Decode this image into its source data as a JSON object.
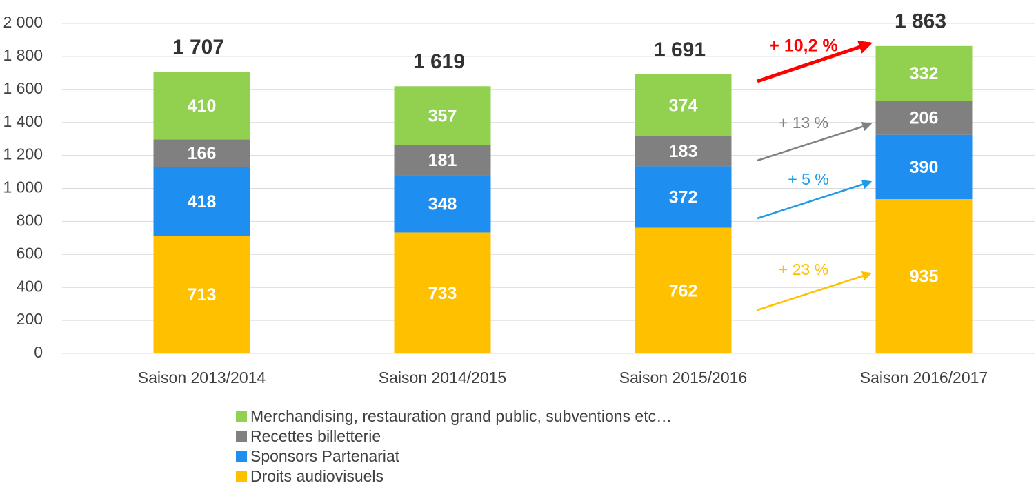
{
  "chart_data": {
    "type": "stacked_bar",
    "categories": [
      "Saison 2013/2014",
      "Saison 2014/2015",
      "Saison 2015/2016",
      "Saison 2016/2017"
    ],
    "series": [
      {
        "name": "Droits audiovisuels",
        "color": "#FFC000",
        "values": [
          713,
          733,
          762,
          935
        ]
      },
      {
        "name": "Sponsors Partenariat",
        "color": "#1E8FF0",
        "values": [
          418,
          348,
          372,
          390
        ]
      },
      {
        "name": "Recettes billetterie",
        "color": "#808080",
        "values": [
          166,
          181,
          183,
          206
        ]
      },
      {
        "name": "Merchandising, restauration grand public, subventions etc…",
        "color": "#92D050",
        "values": [
          410,
          357,
          374,
          332
        ]
      }
    ],
    "totals": {
      "values": [
        1707,
        1619,
        1691,
        1863
      ],
      "value_labels": [
        "1 707",
        "1 619",
        "1 691",
        "1 863"
      ]
    },
    "annotations": [
      {
        "text": "+ 10,2 %",
        "color": "#FF0000"
      },
      {
        "text": "+ 13 %",
        "color": "#808080"
      },
      {
        "text": "+ 5 %",
        "color": "#1E9BE8"
      },
      {
        "text": "+ 23 %",
        "color": "#FFC000"
      }
    ],
    "ylim": [
      0,
      2000
    ],
    "yticks": [
      0,
      200,
      400,
      600,
      800,
      {
        "value": 1000,
        "label": "1 000"
      },
      {
        "value": 1200,
        "label": "1 200"
      },
      {
        "value": 1400,
        "label": "1 400"
      },
      {
        "value": 1600,
        "label": "1 600"
      },
      {
        "value": 1800,
        "label": "1 800"
      },
      {
        "value": 2000,
        "label": "2 000"
      }
    ],
    "grid": true
  }
}
